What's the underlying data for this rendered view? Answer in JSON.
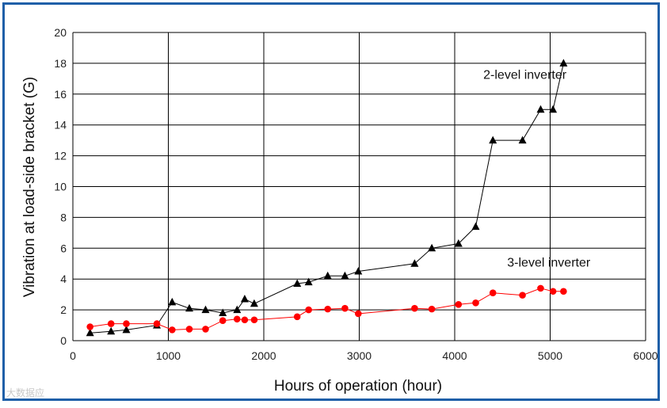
{
  "chart_data": {
    "type": "line",
    "xlabel": "Hours of operation (hour)",
    "ylabel": "Vibration at load-side bracket (G)",
    "xlim": [
      0,
      6000
    ],
    "ylim": [
      0,
      20
    ],
    "xticks": [
      0,
      1000,
      2000,
      3000,
      4000,
      5000,
      6000
    ],
    "yticks": [
      0,
      2,
      4,
      6,
      8,
      10,
      12,
      14,
      16,
      18,
      20
    ],
    "grid": true,
    "series": [
      {
        "name": "2-level inverter",
        "color": "#000000",
        "marker": "triangle",
        "points": [
          [
            180,
            0.5
          ],
          [
            400,
            0.6
          ],
          [
            560,
            0.7
          ],
          [
            880,
            1.0
          ],
          [
            1040,
            2.5
          ],
          [
            1220,
            2.1
          ],
          [
            1390,
            2.0
          ],
          [
            1570,
            1.8
          ],
          [
            1720,
            2.0
          ],
          [
            1800,
            2.7
          ],
          [
            1900,
            2.4
          ],
          [
            2350,
            3.7
          ],
          [
            2470,
            3.8
          ],
          [
            2670,
            4.2
          ],
          [
            2850,
            4.2
          ],
          [
            2990,
            4.5
          ],
          [
            3580,
            5.0
          ],
          [
            3760,
            6.0
          ],
          [
            4040,
            6.3
          ],
          [
            4220,
            7.4
          ],
          [
            4400,
            13.0
          ],
          [
            4710,
            13.0
          ],
          [
            4900,
            15.0
          ],
          [
            5030,
            15.0
          ],
          [
            5140,
            18.0
          ]
        ]
      },
      {
        "name": "3-level inverter",
        "color": "#ff0000",
        "marker": "circle",
        "points": [
          [
            180,
            0.9
          ],
          [
            400,
            1.1
          ],
          [
            560,
            1.1
          ],
          [
            880,
            1.1
          ],
          [
            1040,
            0.7
          ],
          [
            1220,
            0.75
          ],
          [
            1390,
            0.75
          ],
          [
            1570,
            1.3
          ],
          [
            1720,
            1.4
          ],
          [
            1800,
            1.35
          ],
          [
            1900,
            1.35
          ],
          [
            2350,
            1.55
          ],
          [
            2470,
            2.0
          ],
          [
            2670,
            2.05
          ],
          [
            2850,
            2.1
          ],
          [
            2990,
            1.75
          ],
          [
            3580,
            2.1
          ],
          [
            3760,
            2.05
          ],
          [
            4040,
            2.35
          ],
          [
            4220,
            2.45
          ],
          [
            4400,
            3.1
          ],
          [
            4710,
            2.95
          ],
          [
            4900,
            3.4
          ],
          [
            5030,
            3.2
          ],
          [
            5140,
            3.2
          ]
        ]
      }
    ],
    "annotations": [
      {
        "text": "2-level inverter",
        "x": 4300,
        "y": 17.0
      },
      {
        "text": "3-level inverter",
        "x": 4550,
        "y": 4.8
      }
    ]
  },
  "watermark": "大数据应"
}
